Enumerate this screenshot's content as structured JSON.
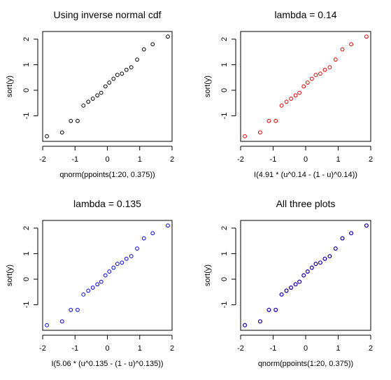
{
  "chart_data": [
    {
      "type": "scatter",
      "title": "Using inverse normal cdf",
      "xlabel": "qnorm(ppoints(1:20, 0.375))",
      "ylabel": "sort(y)",
      "xlim": [
        -2,
        2
      ],
      "ylim": [
        -2,
        2.3
      ],
      "xticks": [
        "-2",
        "-1",
        "0",
        "1",
        "2"
      ],
      "yticks": [
        "-1",
        "0",
        "1",
        "2"
      ],
      "grid": false,
      "series": [
        {
          "color": "#000000",
          "x": [
            -1.87,
            -1.4,
            -1.13,
            -0.92,
            -0.74,
            -0.59,
            -0.45,
            -0.31,
            -0.19,
            -0.06,
            0.06,
            0.19,
            0.31,
            0.45,
            0.59,
            0.74,
            0.92,
            1.13,
            1.4,
            1.87
          ],
          "y": [
            -1.8,
            -1.65,
            -1.2,
            -1.2,
            -0.6,
            -0.45,
            -0.33,
            -0.2,
            -0.1,
            0.15,
            0.3,
            0.45,
            0.6,
            0.65,
            0.8,
            0.9,
            1.2,
            1.6,
            1.8,
            2.1
          ]
        }
      ]
    },
    {
      "type": "scatter",
      "title": "lambda = 0.14",
      "xlabel": "I(4.91 * (u^0.14 - (1 - u)^0.14))",
      "ylabel": "sort(y)",
      "xlim": [
        -2,
        2
      ],
      "ylim": [
        -2,
        2.3
      ],
      "xticks": [
        "-2",
        "-1",
        "0",
        "1",
        "2"
      ],
      "yticks": [
        "-1",
        "0",
        "1",
        "2"
      ],
      "grid": false,
      "series": [
        {
          "color": "#dd0000",
          "x": [
            -1.87,
            -1.4,
            -1.13,
            -0.92,
            -0.74,
            -0.59,
            -0.45,
            -0.31,
            -0.19,
            -0.06,
            0.06,
            0.19,
            0.31,
            0.45,
            0.59,
            0.74,
            0.92,
            1.13,
            1.4,
            1.87
          ],
          "y": [
            -1.8,
            -1.65,
            -1.2,
            -1.2,
            -0.6,
            -0.45,
            -0.33,
            -0.2,
            -0.1,
            0.15,
            0.3,
            0.45,
            0.6,
            0.65,
            0.8,
            0.9,
            1.2,
            1.6,
            1.8,
            2.1
          ]
        }
      ]
    },
    {
      "type": "scatter",
      "title": "lambda = 0.135",
      "xlabel": "I(5.06 * (u^0.135 - (1 - u)^0.135))",
      "ylabel": "sort(y)",
      "xlim": [
        -2,
        2
      ],
      "ylim": [
        -2,
        2.3
      ],
      "xticks": [
        "-2",
        "-1",
        "0",
        "1",
        "2"
      ],
      "yticks": [
        "-1",
        "0",
        "1",
        "2"
      ],
      "grid": false,
      "series": [
        {
          "color": "#0000dd",
          "x": [
            -1.87,
            -1.4,
            -1.13,
            -0.92,
            -0.74,
            -0.59,
            -0.45,
            -0.31,
            -0.19,
            -0.06,
            0.06,
            0.19,
            0.31,
            0.45,
            0.59,
            0.74,
            0.92,
            1.13,
            1.4,
            1.87
          ],
          "y": [
            -1.8,
            -1.65,
            -1.2,
            -1.2,
            -0.6,
            -0.45,
            -0.33,
            -0.2,
            -0.1,
            0.15,
            0.3,
            0.45,
            0.6,
            0.65,
            0.8,
            0.9,
            1.2,
            1.6,
            1.8,
            2.1
          ]
        }
      ]
    },
    {
      "type": "scatter",
      "title": "All three plots",
      "xlabel": "qnorm(ppoints(1:20, 0.375))",
      "ylabel": "sort(y)",
      "xlim": [
        -2,
        2
      ],
      "ylim": [
        -2,
        2.3
      ],
      "xticks": [
        "-2",
        "-1",
        "0",
        "1",
        "2"
      ],
      "yticks": [
        "-1",
        "0",
        "1",
        "2"
      ],
      "grid": false,
      "series": [
        {
          "color": "#000000",
          "x": [
            -1.87,
            -1.4,
            -1.13,
            -0.92,
            -0.74,
            -0.59,
            -0.45,
            -0.31,
            -0.19,
            -0.06,
            0.06,
            0.19,
            0.31,
            0.45,
            0.59,
            0.74,
            0.92,
            1.13,
            1.4,
            1.87
          ],
          "y": [
            -1.8,
            -1.65,
            -1.2,
            -1.2,
            -0.6,
            -0.45,
            -0.33,
            -0.2,
            -0.1,
            0.15,
            0.3,
            0.45,
            0.6,
            0.65,
            0.8,
            0.9,
            1.2,
            1.6,
            1.8,
            2.1
          ]
        },
        {
          "color": "#dd0000",
          "x": [
            -1.87,
            -1.4,
            -1.13,
            -0.92,
            -0.74,
            -0.59,
            -0.45,
            -0.31,
            -0.19,
            -0.06,
            0.06,
            0.19,
            0.31,
            0.45,
            0.59,
            0.74,
            0.92,
            1.13,
            1.4,
            1.87
          ],
          "y": [
            -1.8,
            -1.65,
            -1.2,
            -1.2,
            -0.6,
            -0.45,
            -0.33,
            -0.2,
            -0.1,
            0.15,
            0.3,
            0.45,
            0.6,
            0.65,
            0.8,
            0.9,
            1.2,
            1.6,
            1.8,
            2.1
          ]
        },
        {
          "color": "#0000dd",
          "x": [
            -1.87,
            -1.4,
            -1.13,
            -0.92,
            -0.74,
            -0.59,
            -0.45,
            -0.31,
            -0.19,
            -0.06,
            0.06,
            0.19,
            0.31,
            0.45,
            0.59,
            0.74,
            0.92,
            1.13,
            1.4,
            1.87
          ],
          "y": [
            -1.8,
            -1.65,
            -1.2,
            -1.2,
            -0.6,
            -0.45,
            -0.33,
            -0.2,
            -0.1,
            0.15,
            0.3,
            0.45,
            0.6,
            0.65,
            0.8,
            0.9,
            1.2,
            1.6,
            1.8,
            2.1
          ]
        }
      ]
    }
  ]
}
